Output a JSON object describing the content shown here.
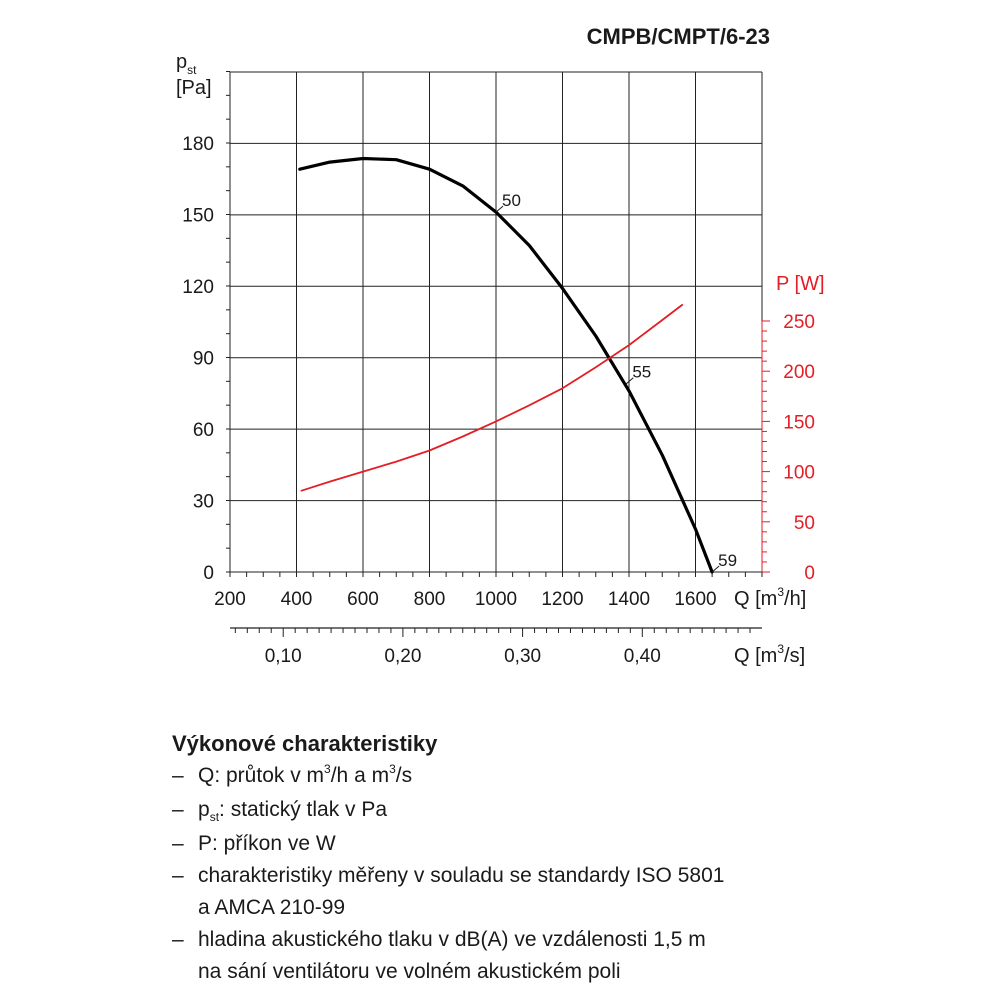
{
  "chart_data": {
    "type": "line",
    "title": "CMPB/CMPT/6-23",
    "y_left": {
      "label_symbol": "p",
      "label_sub": "st",
      "unit": "[Pa]",
      "ticks": [
        0,
        30,
        60,
        90,
        120,
        150,
        180
      ],
      "range": [
        0,
        180
      ]
    },
    "y_right": {
      "label": "P [W]",
      "ticks": [
        0,
        50,
        100,
        150,
        200,
        250
      ],
      "range": [
        0,
        250
      ],
      "color": "#e41e26"
    },
    "x": {
      "label_pre": "Q [m",
      "label_sup": "3",
      "label_post": "/h]",
      "ticks": [
        200,
        400,
        600,
        800,
        1000,
        1200,
        1400,
        1600
      ],
      "range": [
        200,
        1800
      ]
    },
    "x2": {
      "label_pre": "Q [m",
      "label_sup": "3",
      "label_post": "/s]",
      "ticks": [
        "0,10",
        "0,20",
        "0,30",
        "0,40"
      ],
      "values": [
        0.1,
        0.2,
        0.3,
        0.4
      ]
    },
    "grid": true,
    "series": [
      {
        "axis": "left",
        "color": "#000000",
        "points": [
          [
            410,
            169
          ],
          [
            500,
            172
          ],
          [
            600,
            173.5
          ],
          [
            700,
            173
          ],
          [
            800,
            169
          ],
          [
            900,
            162
          ],
          [
            1000,
            151
          ],
          [
            1100,
            137
          ],
          [
            1200,
            119
          ],
          [
            1300,
            99
          ],
          [
            1400,
            76
          ],
          [
            1500,
            49
          ],
          [
            1600,
            18
          ],
          [
            1650,
            0
          ]
        ]
      },
      {
        "axis": "right",
        "color": "#e41e26",
        "points": [
          [
            415,
            81
          ],
          [
            500,
            90
          ],
          [
            600,
            100
          ],
          [
            700,
            110
          ],
          [
            800,
            121
          ],
          [
            900,
            135
          ],
          [
            1000,
            150
          ],
          [
            1100,
            166
          ],
          [
            1200,
            183
          ],
          [
            1300,
            204
          ],
          [
            1400,
            226
          ],
          [
            1500,
            251
          ],
          [
            1560,
            266
          ]
        ]
      }
    ],
    "annotations": [
      {
        "text": "50",
        "x": 1000,
        "y": 151
      },
      {
        "text": "55",
        "x": 1392,
        "y": 79
      },
      {
        "text": "59",
        "x": 1650,
        "y": 0
      }
    ]
  },
  "description": {
    "title": "Výkonové charakteristiky",
    "items": [
      {
        "pre": "Q: průtok v m",
        "sup": "3",
        "post": "/h a m",
        "sup2": "3",
        "post2": "/s"
      },
      {
        "pre": "p",
        "sub": "st",
        "post": ": statický tlak v Pa"
      },
      {
        "pre": "P: příkon ve W"
      },
      {
        "pre": "charakteristiky měřeny v souladu se standardy ISO 5801",
        "line2": "a AMCA 210-99"
      },
      {
        "pre": "hladina akustického tlaku v dB(A) ve vzdálenosti 1,5 m",
        "line2": "na sání ventilátoru ve volném akustickém poli"
      }
    ]
  }
}
